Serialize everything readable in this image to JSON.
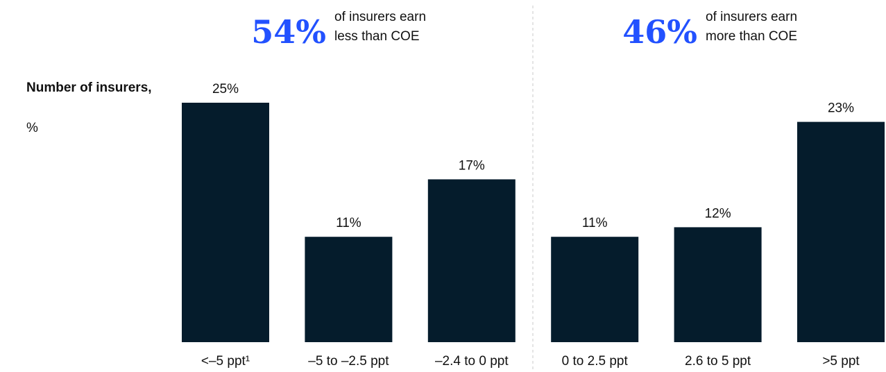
{
  "chart_data": {
    "type": "bar",
    "ylabel": "Number of insurers,",
    "ylabel_unit": "%",
    "annotations": [
      {
        "label": "54%",
        "lines": [
          "of insurers earn",
          "less than COE"
        ]
      },
      {
        "label": "46%",
        "lines": [
          "of insurers earn",
          "more than COE"
        ]
      }
    ],
    "categories": [
      "<–5 ppt¹",
      "–5 to –2.5 ppt",
      "–2.4 to 0 ppt",
      "0 to 2.5 ppt",
      "2.6 to 5 ppt",
      ">5 ppt"
    ],
    "values": [
      25,
      11,
      17,
      11,
      12,
      23
    ],
    "value_labels": [
      "25%",
      "11%",
      "17%",
      "11%",
      "12%",
      "23%"
    ],
    "color": "#051c2c",
    "ylim": [
      0,
      25
    ]
  }
}
